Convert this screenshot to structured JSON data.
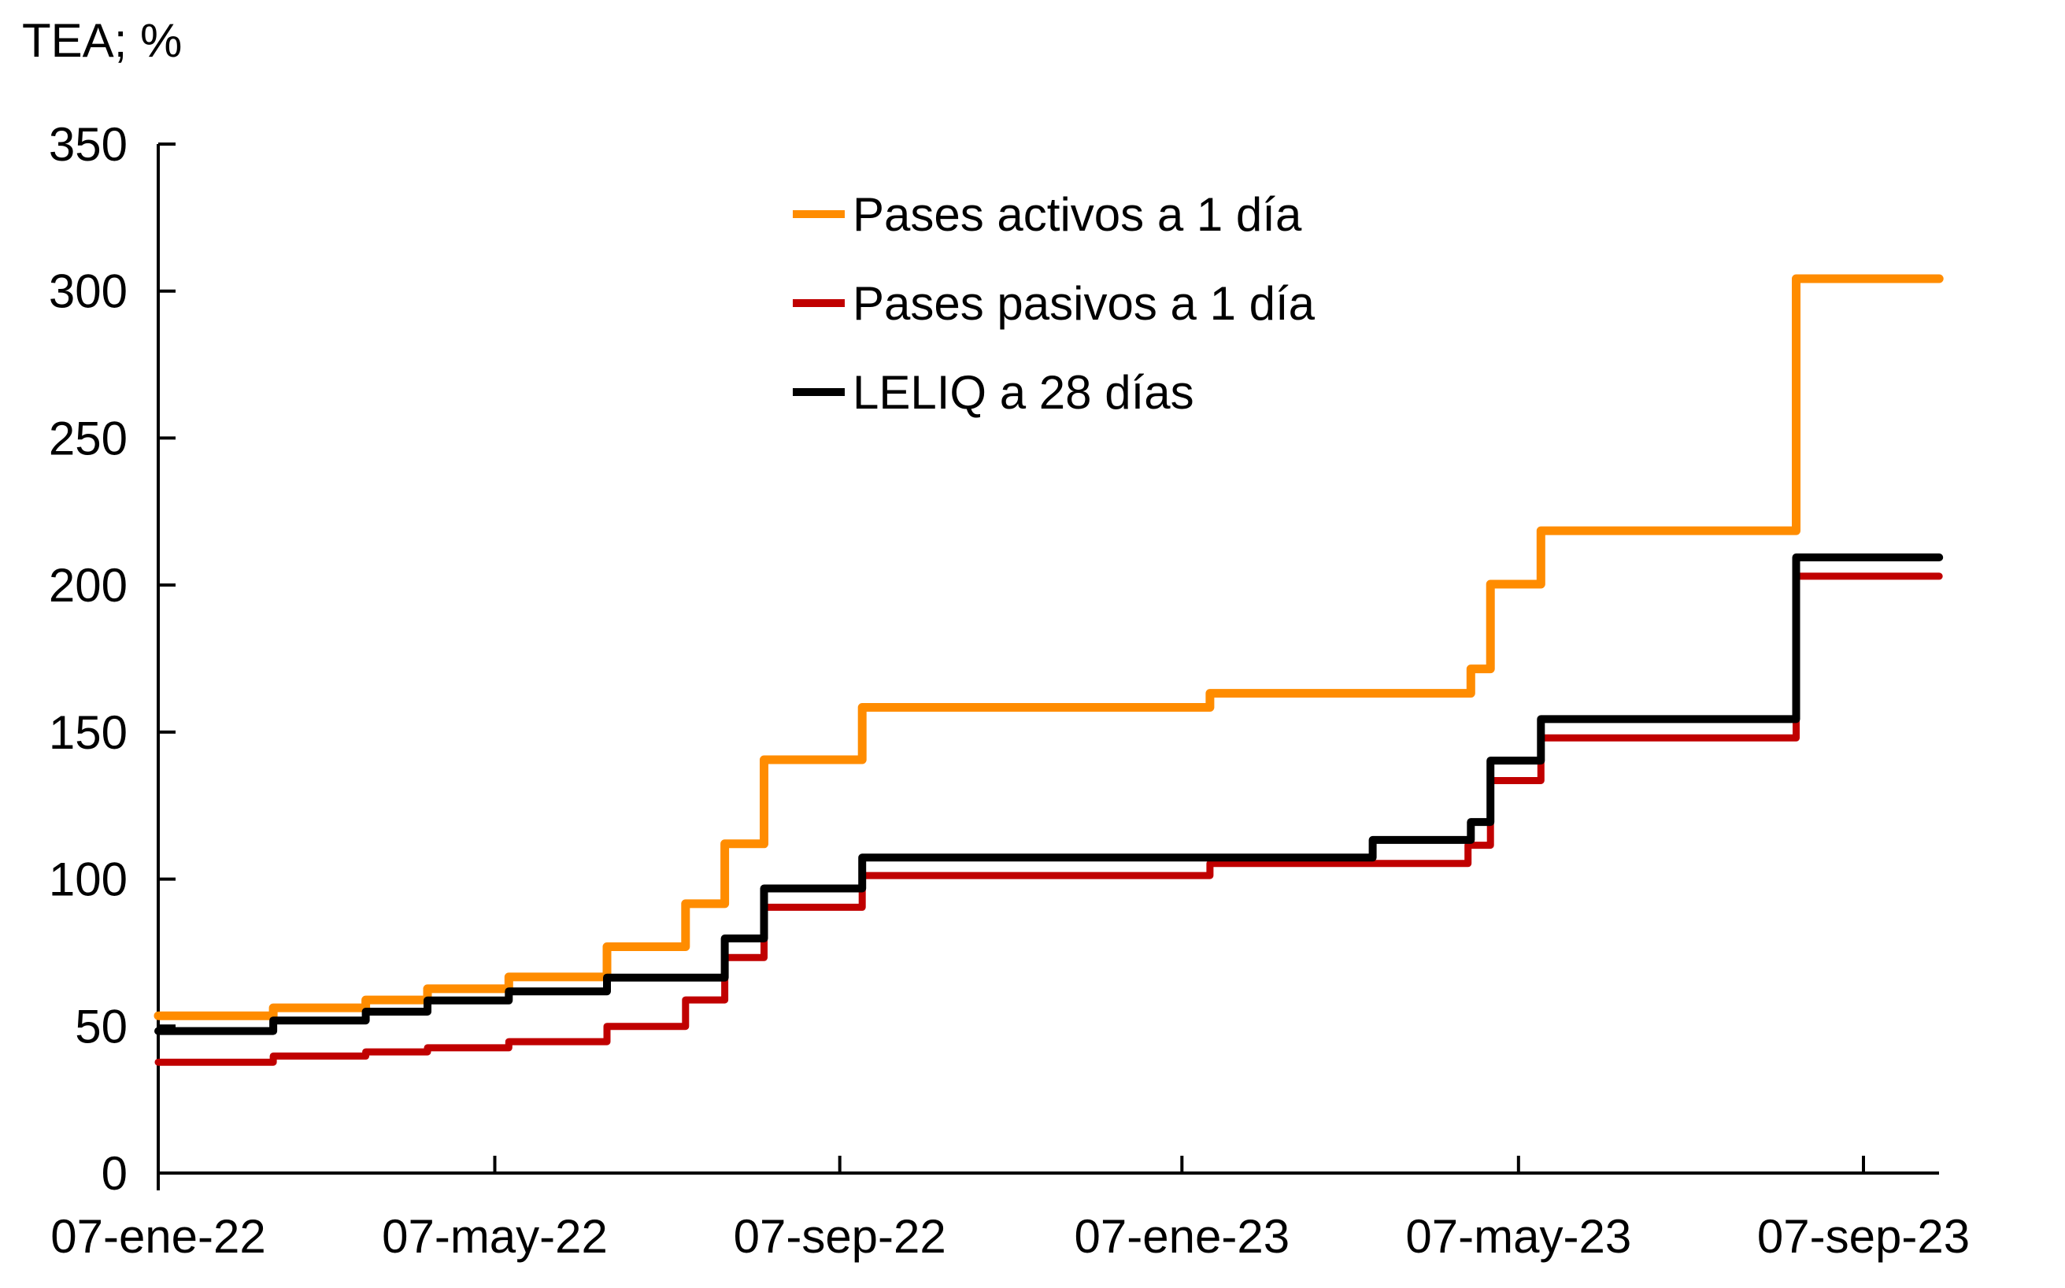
{
  "page": {
    "background": "#FFFFFF"
  },
  "title": "TEA; %",
  "legend": {
    "items": [
      {
        "label": "Pases activos a 1 día",
        "color": "#FF8C00"
      },
      {
        "label": "Pases pasivos a 1 día",
        "color": "#C00000"
      },
      {
        "label": "LELIQ a 28 días",
        "color": "#000000"
      }
    ]
  },
  "chart_data": {
    "type": "line",
    "step": true,
    "title": "TEA; %",
    "ylabel": "TEA; %",
    "grid": false,
    "legend_position": "upper-center-left-of-plot",
    "x_axis": {
      "tick_labels": [
        "07-ene-22",
        "07-may-22",
        "07-sep-22",
        "07-ene-23",
        "07-may-23",
        "07-sep-23"
      ],
      "tick_positions_days": [
        0,
        120,
        243,
        365,
        485,
        608
      ],
      "range_days": [
        0,
        635
      ]
    },
    "y_axis": {
      "min": 0,
      "max": 350,
      "step": 50,
      "tick_labels": [
        "0",
        "50",
        "100",
        "150",
        "200",
        "250",
        "300",
        "350"
      ]
    },
    "series": [
      {
        "name": "Pases activos a 1 día",
        "color": "#FF8C00",
        "points": [
          {
            "date": "07-ene-22",
            "t": 0,
            "tea": 53.5
          },
          {
            "date": "17-feb-22",
            "t": 41,
            "tea": 56.2
          },
          {
            "date": "22-mar-22",
            "t": 74,
            "tea": 58.9
          },
          {
            "date": "13-abr-22",
            "t": 96,
            "tea": 62.7
          },
          {
            "date": "12-may-22",
            "t": 125,
            "tea": 66.7
          },
          {
            "date": "16-jun-22",
            "t": 160,
            "tea": 77.0
          },
          {
            "date": "14-jul-22",
            "t": 188,
            "tea": 91.6
          },
          {
            "date": "28-jul-22",
            "t": 202,
            "tea": 112.0
          },
          {
            "date": "11-ago-22",
            "t": 216,
            "tea": 140.6
          },
          {
            "date": "15-sep-22",
            "t": 251,
            "tea": 158.4
          },
          {
            "date": "17-ene-23",
            "t": 375,
            "tea": 163.2
          },
          {
            "date": "20-abr-23",
            "t": 468,
            "tea": 171.5
          },
          {
            "date": "27-abr-23",
            "t": 475,
            "tea": 200.3
          },
          {
            "date": "15-may-23",
            "t": 493,
            "tea": 218.5
          },
          {
            "date": "14-ago-23",
            "t": 584,
            "tea": 304.2
          },
          {
            "date": "29-sep-23",
            "t": 635,
            "tea": 304.2
          }
        ]
      },
      {
        "name": "Pases pasivos a 1 día",
        "color": "#C00000",
        "points": [
          {
            "date": "07-ene-22",
            "t": 0,
            "tea": 37.7
          },
          {
            "date": "17-feb-22",
            "t": 41,
            "tea": 39.8
          },
          {
            "date": "22-mar-22",
            "t": 74,
            "tea": 41.2
          },
          {
            "date": "13-abr-22",
            "t": 96,
            "tea": 42.6
          },
          {
            "date": "12-may-22",
            "t": 125,
            "tea": 44.7
          },
          {
            "date": "16-jun-22",
            "t": 160,
            "tea": 49.9
          },
          {
            "date": "14-jul-22",
            "t": 188,
            "tea": 58.9
          },
          {
            "date": "28-jul-22",
            "t": 202,
            "tea": 73.3
          },
          {
            "date": "11-ago-22",
            "t": 216,
            "tea": 90.4
          },
          {
            "date": "15-sep-22",
            "t": 251,
            "tea": 101.2
          },
          {
            "date": "17-ene-23",
            "t": 375,
            "tea": 105.3
          },
          {
            "date": "19-abr-23",
            "t": 467,
            "tea": 111.5
          },
          {
            "date": "27-abr-23",
            "t": 475,
            "tea": 133.5
          },
          {
            "date": "15-may-23",
            "t": 493,
            "tea": 148.0
          },
          {
            "date": "14-ago-23",
            "t": 584,
            "tea": 203.0
          },
          {
            "date": "29-sep-23",
            "t": 635,
            "tea": 203.0
          }
        ]
      },
      {
        "name": "LELIQ a 28 días",
        "color": "#000000",
        "points": [
          {
            "date": "07-ene-22",
            "t": 0,
            "tea": 48.3
          },
          {
            "date": "17-feb-22",
            "t": 41,
            "tea": 51.9
          },
          {
            "date": "22-mar-22",
            "t": 74,
            "tea": 54.9
          },
          {
            "date": "13-abr-22",
            "t": 96,
            "tea": 58.7
          },
          {
            "date": "12-may-22",
            "t": 125,
            "tea": 61.8
          },
          {
            "date": "16-jun-22",
            "t": 160,
            "tea": 66.5
          },
          {
            "date": "28-jul-22",
            "t": 202,
            "tea": 79.8
          },
          {
            "date": "11-ago-22",
            "t": 216,
            "tea": 96.8
          },
          {
            "date": "15-sep-22",
            "t": 251,
            "tea": 107.3
          },
          {
            "date": "16-mar-23",
            "t": 433,
            "tea": 113.3
          },
          {
            "date": "20-abr-23",
            "t": 468,
            "tea": 119.4
          },
          {
            "date": "27-abr-23",
            "t": 475,
            "tea": 140.3
          },
          {
            "date": "15-may-23",
            "t": 493,
            "tea": 154.4
          },
          {
            "date": "14-ago-23",
            "t": 584,
            "tea": 209.4
          },
          {
            "date": "29-sep-23",
            "t": 635,
            "tea": 209.4
          }
        ]
      }
    ]
  }
}
